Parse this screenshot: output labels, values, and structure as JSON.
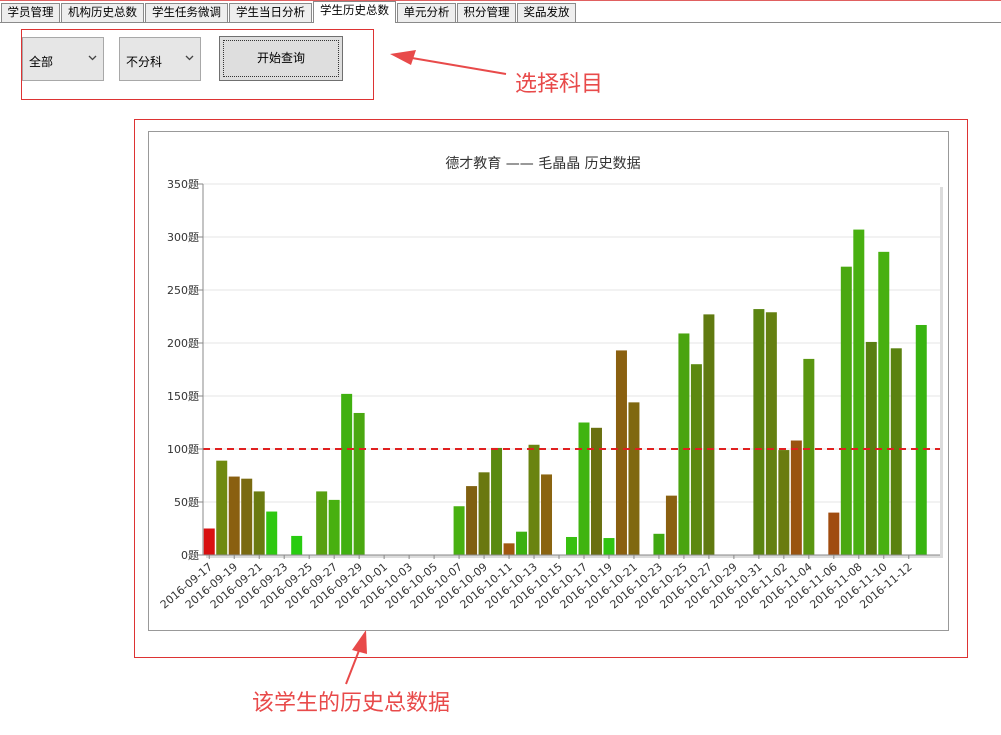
{
  "tabs": [
    {
      "label": "学员管理",
      "active": false
    },
    {
      "label": "机构历史总数",
      "active": false
    },
    {
      "label": "学生任务微调",
      "active": false
    },
    {
      "label": "学生当日分析",
      "active": false
    },
    {
      "label": "学生历史总数",
      "active": true
    },
    {
      "label": "单元分析",
      "active": false
    },
    {
      "label": "积分管理",
      "active": false
    },
    {
      "label": "奖品发放",
      "active": false
    }
  ],
  "controls": {
    "range_select": "全部",
    "subject_select": "不分科",
    "query_button": "开始查询"
  },
  "annotations": {
    "select_subject": "选择科目",
    "history_data": "该学生的历史总数据"
  },
  "colors": {
    "annotation_red": "#e84a4a",
    "reference_line": "#e02020"
  },
  "chart_data": {
    "type": "bar",
    "title": "德才教育 —— 毛晶晶 历史数据",
    "ylim": [
      0,
      350
    ],
    "yticks": [
      "0题",
      "50题",
      "100题",
      "150题",
      "200题",
      "250题",
      "300题",
      "350题"
    ],
    "reference_line": 100,
    "x_tick_labels": [
      "2016-09-17",
      "2016-09-19",
      "2016-09-21",
      "2016-09-23",
      "2016-09-25",
      "2016-09-27",
      "2016-09-29",
      "2016-10-01",
      "2016-10-03",
      "2016-10-05",
      "2016-10-07",
      "2016-10-09",
      "2016-10-11",
      "2016-10-13",
      "2016-10-15",
      "2016-10-17",
      "2016-10-19",
      "2016-10-21",
      "2016-10-23",
      "2016-10-25",
      "2016-10-27",
      "2016-10-29",
      "2016-10-31",
      "2016-11-02",
      "2016-11-04",
      "2016-11-06",
      "2016-11-08",
      "2016-11-10",
      "2016-11-12"
    ],
    "categories": [
      "2016-09-17",
      "2016-09-18",
      "2016-09-19",
      "2016-09-20",
      "2016-09-21",
      "2016-09-22",
      "2016-09-23",
      "2016-09-24",
      "2016-09-25",
      "2016-09-26",
      "2016-09-27",
      "2016-09-28",
      "2016-09-29",
      "2016-09-30",
      "2016-10-01",
      "2016-10-02",
      "2016-10-03",
      "2016-10-04",
      "2016-10-05",
      "2016-10-06",
      "2016-10-07",
      "2016-10-08",
      "2016-10-09",
      "2016-10-10",
      "2016-10-11",
      "2016-10-12",
      "2016-10-13",
      "2016-10-14",
      "2016-10-15",
      "2016-10-16",
      "2016-10-17",
      "2016-10-18",
      "2016-10-19",
      "2016-10-20",
      "2016-10-21",
      "2016-10-22",
      "2016-10-23",
      "2016-10-24",
      "2016-10-25",
      "2016-10-26",
      "2016-10-27",
      "2016-10-28",
      "2016-10-29",
      "2016-10-30",
      "2016-10-31",
      "2016-11-01",
      "2016-11-02",
      "2016-11-03",
      "2016-11-04",
      "2016-11-05",
      "2016-11-06",
      "2016-11-07",
      "2016-11-08",
      "2016-11-09",
      "2016-11-10",
      "2016-11-11",
      "2016-11-12",
      "2016-11-13",
      "2016-11-14"
    ],
    "values": [
      25,
      89,
      74,
      72,
      60,
      41,
      0,
      18,
      0,
      60,
      52,
      152,
      134,
      0,
      0,
      0,
      0,
      0,
      0,
      0,
      46,
      65,
      78,
      101,
      11,
      22,
      104,
      76,
      0,
      17,
      125,
      120,
      16,
      193,
      144,
      0,
      20,
      56,
      209,
      180,
      227,
      0,
      0,
      0,
      232,
      229,
      99,
      108,
      185,
      0,
      40,
      272,
      307,
      201,
      286,
      195,
      0,
      217,
      0
    ],
    "bar_colors": [
      "#d81010",
      "#6f8a10",
      "#8a6010",
      "#7a6a10",
      "#6a7a10",
      "#2ec810",
      "#000000",
      "#28cc10",
      "#000000",
      "#58a010",
      "#48b010",
      "#40b010",
      "#4aa810",
      "#000000",
      "#000000",
      "#000000",
      "#000000",
      "#000000",
      "#000000",
      "#000000",
      "#48b010",
      "#806010",
      "#6a7810",
      "#5a8a10",
      "#a05810",
      "#3cb010",
      "#6a8410",
      "#8a6410",
      "#000000",
      "#38c010",
      "#40b410",
      "#6a7010",
      "#30c410",
      "#8a6010",
      "#806810",
      "#000000",
      "#40a810",
      "#8a6010",
      "#4aa410",
      "#5c8810",
      "#607a10",
      "#000000",
      "#000000",
      "#000000",
      "#5a8410",
      "#648010",
      "#6a7c10",
      "#9a5410",
      "#5a9610",
      "#000000",
      "#a04c10",
      "#4aa810",
      "#48b010",
      "#587e10",
      "#48b010",
      "#5a8210",
      "#000000",
      "#38b410",
      "#000000"
    ]
  }
}
